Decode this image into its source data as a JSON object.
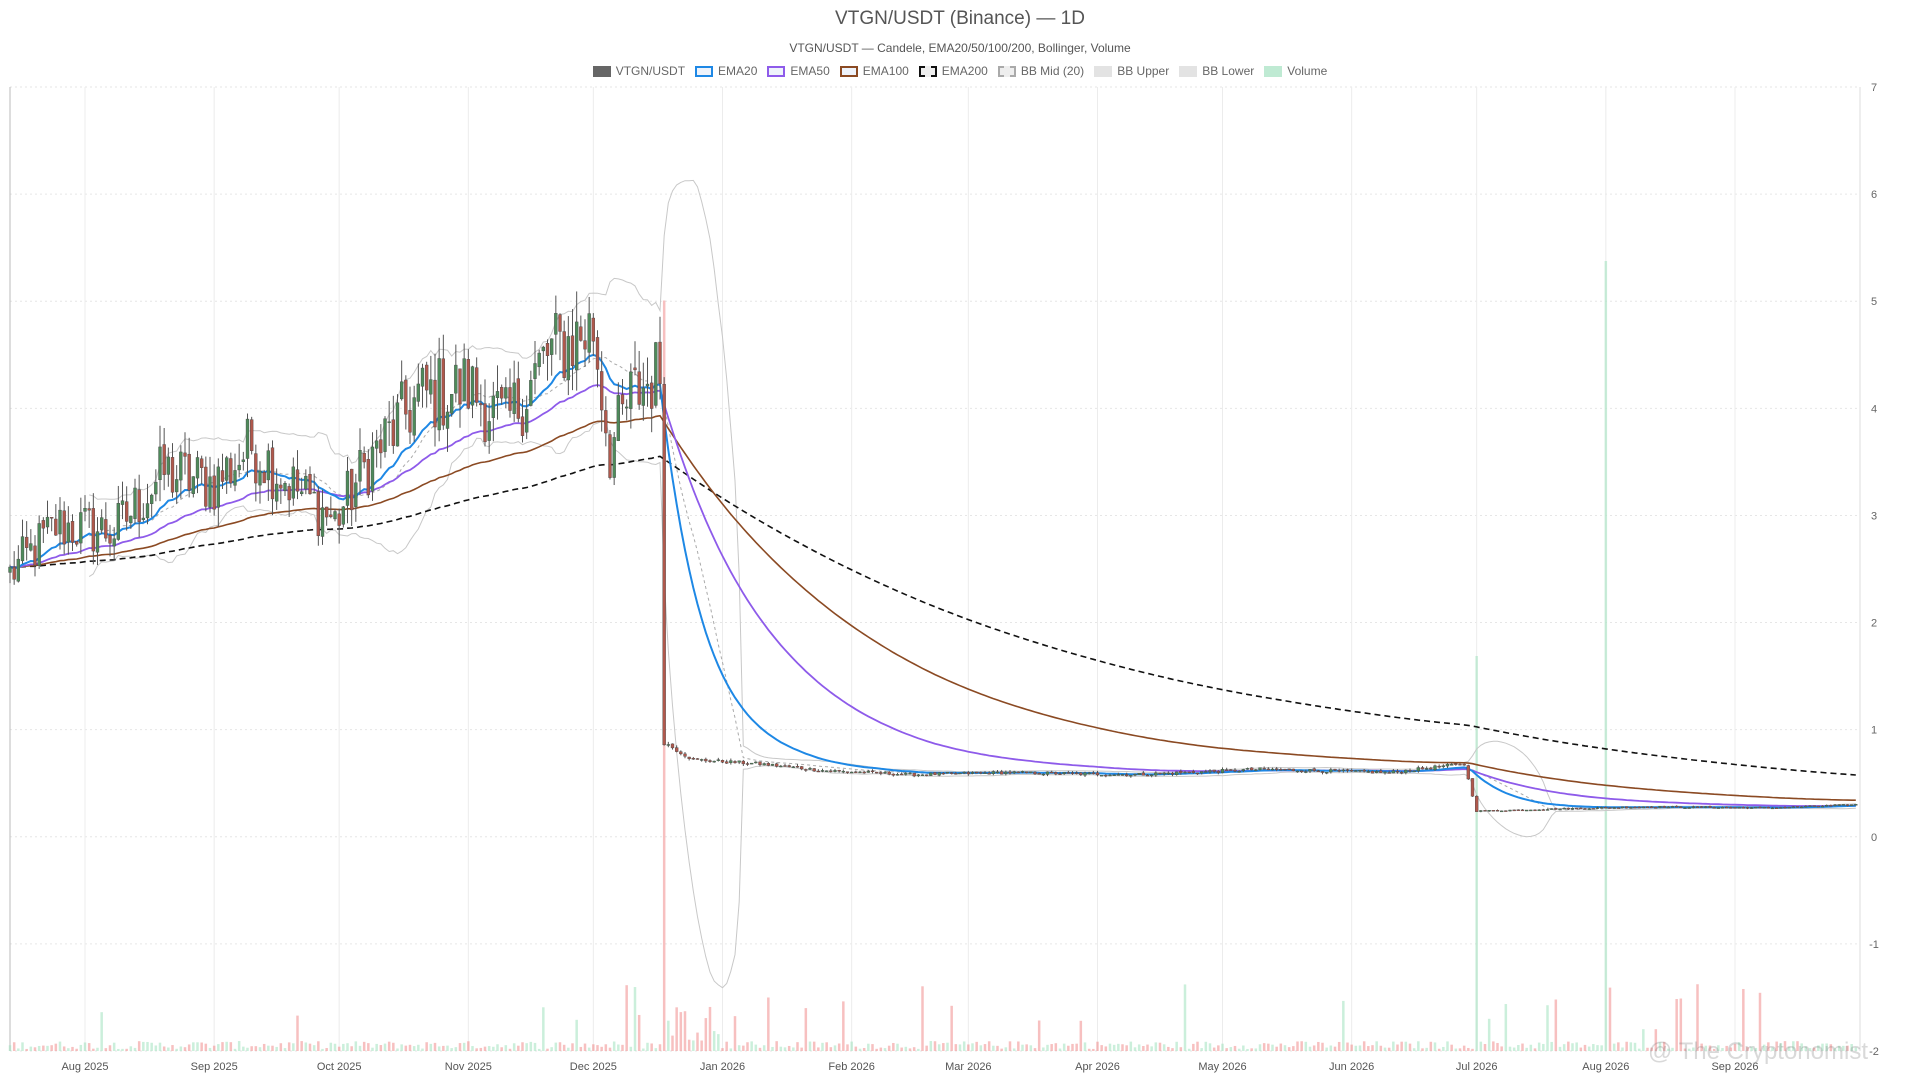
{
  "chart_data": {
    "type": "candlestick",
    "title": "VTGN/USDT (Binance) — 1D",
    "subtitle": "VTGN/USDT — Candele, EMA20/50/100/200, Bollinger, Volume",
    "legend": [
      {
        "name": "VTGN/USDT",
        "color": "#666666",
        "style": "solid-fill"
      },
      {
        "name": "EMA20",
        "color": "#1e88e5",
        "style": "line"
      },
      {
        "name": "EMA50",
        "color": "#8e5bea",
        "style": "line"
      },
      {
        "name": "EMA100",
        "color": "#8b4a23",
        "style": "line"
      },
      {
        "name": "EMA200",
        "color": "#111111",
        "style": "dashed"
      },
      {
        "name": "BB Mid (20)",
        "color": "#aaaaaa",
        "style": "dashed"
      },
      {
        "name": "BB Upper",
        "color": "#c8c8c8",
        "style": "line"
      },
      {
        "name": "BB Lower",
        "color": "#c8c8c8",
        "style": "line"
      },
      {
        "name": "Volume",
        "color": "#bfead3",
        "style": "fill"
      }
    ],
    "y_axis": {
      "position": "right",
      "ylim": [
        -2,
        7
      ],
      "ticks": [
        7,
        6,
        5,
        4,
        3,
        2,
        1,
        0,
        -1,
        -2
      ]
    },
    "x_axis": {
      "date_range": [
        "2025-07-14",
        "2026-10-01"
      ],
      "ticks": [
        {
          "date": "2025-08-01",
          "label": "Aug 2025"
        },
        {
          "date": "2025-09-01",
          "label": "Sep 2025"
        },
        {
          "date": "2025-10-01",
          "label": "Oct 2025"
        },
        {
          "date": "2025-11-01",
          "label": "Nov 2025"
        },
        {
          "date": "2025-12-01",
          "label": "Dec 2025"
        },
        {
          "date": "2026-01-01",
          "label": "Jan 2026"
        },
        {
          "date": "2026-02-01",
          "label": "Feb 2026"
        },
        {
          "date": "2026-03-01",
          "label": "Mar 2026"
        },
        {
          "date": "2026-04-01",
          "label": "Apr 2026"
        },
        {
          "date": "2026-05-01",
          "label": "May 2026"
        },
        {
          "date": "2026-06-01",
          "label": "Jun 2026"
        },
        {
          "date": "2026-07-01",
          "label": "Jul 2026"
        },
        {
          "date": "2026-08-01",
          "label": "Aug 2026"
        },
        {
          "date": "2026-09-01",
          "label": "Sep 2026"
        }
      ]
    },
    "price_anchors": [
      {
        "date": "2025-07-14",
        "close": 2.45
      },
      {
        "date": "2025-07-25",
        "close": 2.9
      },
      {
        "date": "2025-08-08",
        "close": 2.85
      },
      {
        "date": "2025-08-20",
        "close": 3.4
      },
      {
        "date": "2025-09-01",
        "close": 3.3
      },
      {
        "date": "2025-09-10",
        "close": 3.65
      },
      {
        "date": "2025-09-22",
        "close": 3.2
      },
      {
        "date": "2025-09-30",
        "close": 2.95
      },
      {
        "date": "2025-10-08",
        "close": 3.5
      },
      {
        "date": "2025-10-20",
        "close": 4.1
      },
      {
        "date": "2025-11-01",
        "close": 4.2
      },
      {
        "date": "2025-11-10",
        "close": 3.85
      },
      {
        "date": "2025-11-20",
        "close": 4.5
      },
      {
        "date": "2025-12-01",
        "close": 4.75
      },
      {
        "date": "2025-12-05",
        "close": 3.6
      },
      {
        "date": "2025-12-10",
        "close": 4.1
      },
      {
        "date": "2025-12-17",
        "close": 4.35
      },
      {
        "date": "2025-12-18",
        "close": 0.88
      },
      {
        "date": "2025-12-25",
        "close": 0.72
      },
      {
        "date": "2026-01-10",
        "close": 0.68
      },
      {
        "date": "2026-01-25",
        "close": 0.62
      },
      {
        "date": "2026-02-15",
        "close": 0.58
      },
      {
        "date": "2026-03-10",
        "close": 0.6
      },
      {
        "date": "2026-04-10",
        "close": 0.58
      },
      {
        "date": "2026-05-10",
        "close": 0.63
      },
      {
        "date": "2026-06-10",
        "close": 0.6
      },
      {
        "date": "2026-06-28",
        "close": 0.68
      },
      {
        "date": "2026-07-01",
        "close": 0.24
      },
      {
        "date": "2026-07-20",
        "close": 0.26
      },
      {
        "date": "2026-08-10",
        "close": 0.28
      },
      {
        "date": "2026-09-10",
        "close": 0.27
      },
      {
        "date": "2026-09-30",
        "close": 0.3
      }
    ],
    "volume_spikes": [
      {
        "date": "2025-12-18",
        "value": 0.95,
        "direction": "down"
      },
      {
        "date": "2026-07-01",
        "value": 0.5,
        "direction": "up"
      },
      {
        "date": "2026-08-01",
        "value": 1.0,
        "direction": "up"
      }
    ]
  },
  "watermark": "@ The Cryptonomist"
}
